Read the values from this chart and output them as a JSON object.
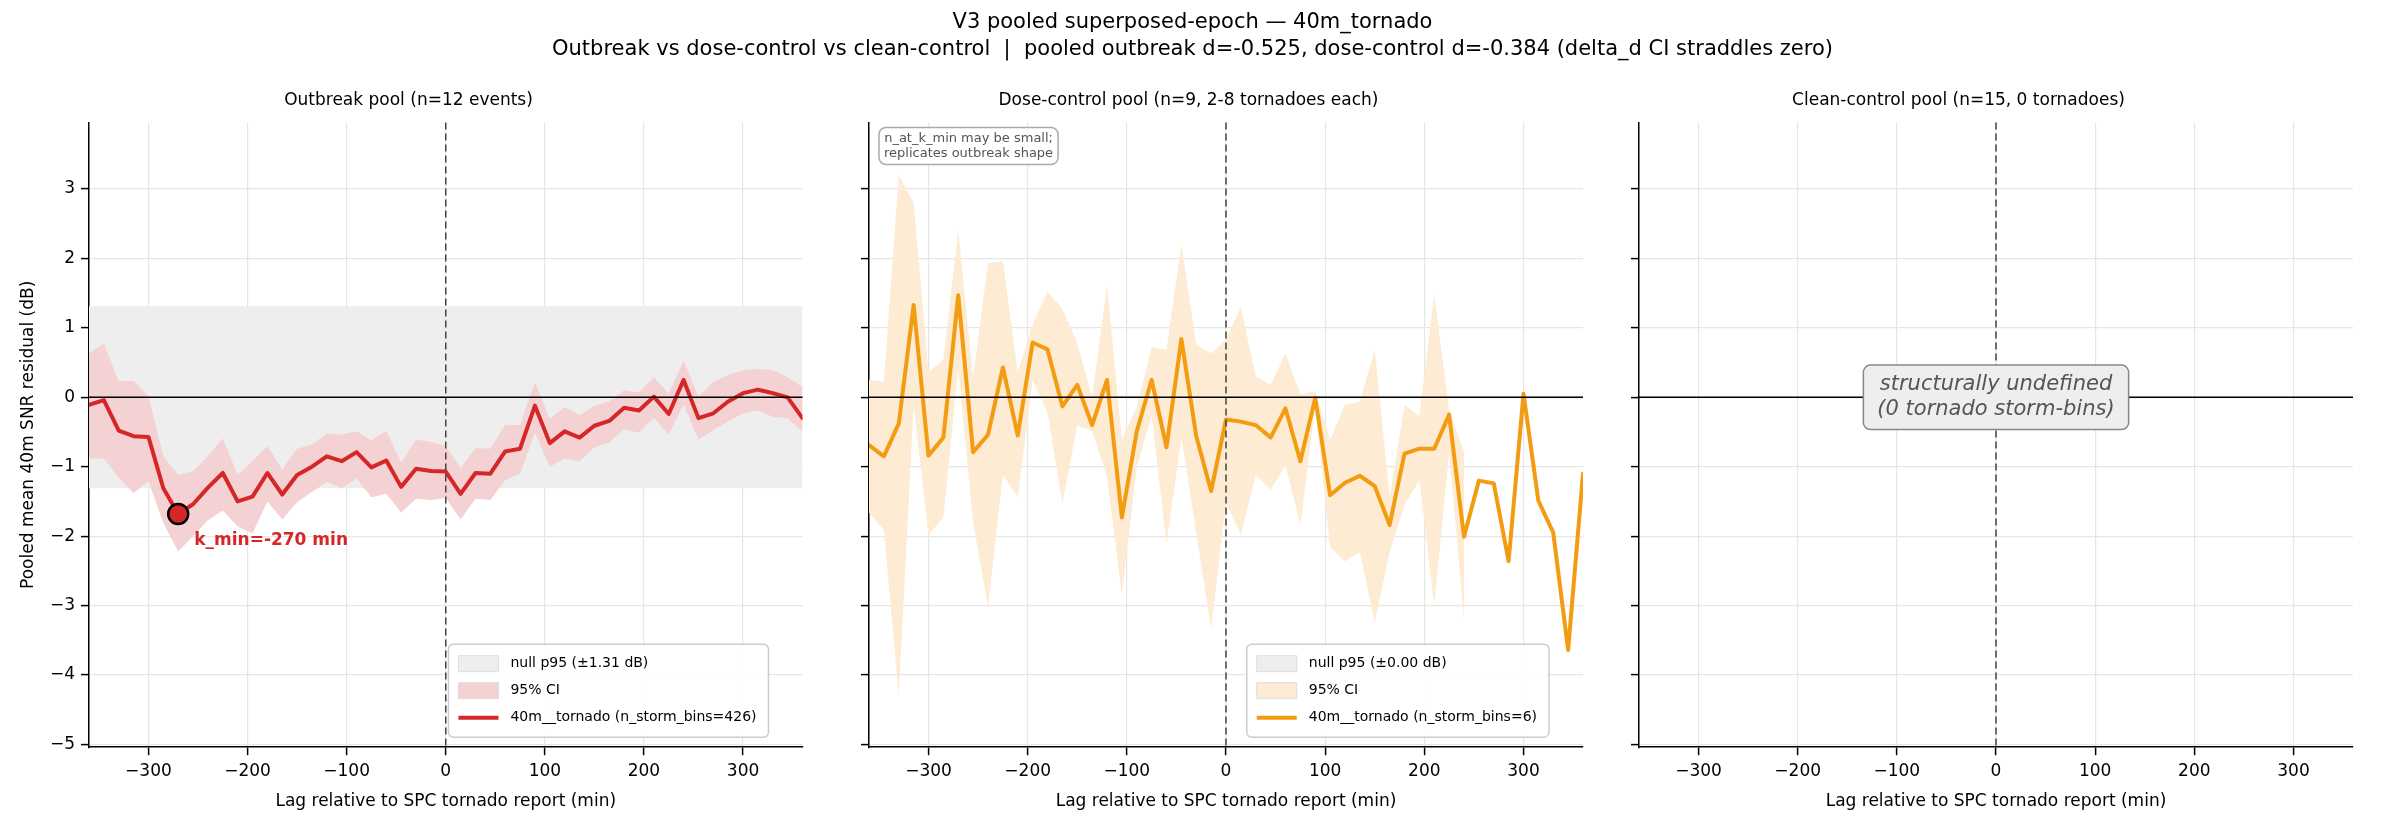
{
  "chart_data": [
    {
      "type": "other",
      "title": "V3 pooled superposed-epoch — 40m_tornado",
      "subtitle": "Outbreak vs dose-control vs clean-control  |  pooled outbreak d=-0.525, dose-control d=-0.384 (delta_d CI straddles zero)"
    },
    {
      "type": "line",
      "title": "Outbreak pool (n=12 events)",
      "xlabel": "Lag relative to SPC tornado report (min)",
      "ylabel": "Pooled mean 40m SNR residual (dB)",
      "x": [
        -360,
        -345,
        -330,
        -315,
        -300,
        -285,
        -270,
        -255,
        -240,
        -225,
        -210,
        -195,
        -180,
        -165,
        -150,
        -135,
        -120,
        -105,
        -90,
        -75,
        -60,
        -45,
        -30,
        -15,
        0,
        15,
        30,
        45,
        60,
        75,
        90,
        105,
        120,
        135,
        150,
        165,
        180,
        195,
        210,
        225,
        240,
        255,
        270,
        285,
        300,
        315,
        330,
        345,
        360
      ],
      "series": [
        {
          "name": "95% CI",
          "type": "area",
          "color": "#f4d1d2",
          "values": [
            null,
            null,
            null,
            null,
            null,
            null,
            null,
            null,
            null,
            null,
            null,
            null,
            null,
            null,
            null,
            null,
            null,
            null,
            null,
            null,
            null,
            null,
            null,
            null,
            null,
            null,
            null,
            null,
            null,
            null,
            null,
            null,
            null,
            null,
            null,
            null,
            null,
            null,
            null,
            null,
            null,
            null,
            null,
            null,
            null,
            null,
            null,
            null,
            null
          ],
          "lower": [
            -0.88,
            -0.88,
            -1.16,
            -1.38,
            -1.21,
            -1.81,
            -2.22,
            -2.0,
            -1.77,
            -1.63,
            -1.86,
            -1.96,
            -1.5,
            -1.76,
            -1.51,
            -1.36,
            -1.22,
            -1.31,
            -1.17,
            -1.44,
            -1.39,
            -1.66,
            -1.46,
            -1.48,
            -1.45,
            -1.76,
            -1.46,
            -1.48,
            -1.19,
            -1.1,
            -0.51,
            -1.0,
            -0.88,
            -0.92,
            -0.72,
            -0.65,
            -0.46,
            -0.51,
            -0.29,
            -0.54,
            -0.1,
            -0.61,
            -0.47,
            -0.35,
            -0.23,
            -0.19,
            -0.28,
            -0.3,
            -0.5
          ],
          "upper": [
            0.63,
            0.77,
            0.23,
            0.24,
            0.01,
            -0.85,
            -1.12,
            -1.06,
            -0.85,
            -0.59,
            -1.12,
            -0.92,
            -0.7,
            -1.04,
            -0.74,
            -0.68,
            -0.52,
            -0.54,
            -0.49,
            -0.62,
            -0.48,
            -0.94,
            -0.61,
            -0.64,
            -0.7,
            -1.02,
            -0.73,
            -0.74,
            -0.4,
            -0.4,
            0.22,
            -0.31,
            -0.14,
            -0.26,
            -0.12,
            -0.06,
            0.1,
            0.07,
            0.29,
            0.05,
            0.53,
            0.01,
            0.22,
            0.32,
            0.39,
            0.41,
            0.39,
            0.29,
            0.15
          ]
        },
        {
          "name": "40m__tornado (n_storm_bins=426)",
          "type": "line",
          "color": "#d62728",
          "marker": "none",
          "values": [
            -0.11,
            -0.04,
            -0.48,
            -0.56,
            -0.57,
            -1.31,
            -1.68,
            -1.54,
            -1.3,
            -1.09,
            -1.5,
            -1.43,
            -1.09,
            -1.4,
            -1.12,
            -1.0,
            -0.85,
            -0.92,
            -0.79,
            -1.01,
            -0.91,
            -1.29,
            -1.03,
            -1.06,
            -1.07,
            -1.39,
            -1.09,
            -1.1,
            -0.78,
            -0.74,
            -0.12,
            -0.66,
            -0.49,
            -0.58,
            -0.41,
            -0.34,
            -0.15,
            -0.19,
            0.01,
            -0.24,
            0.25,
            -0.3,
            -0.23,
            -0.06,
            0.06,
            0.11,
            0.06,
            0.0,
            -0.3
          ]
        },
        {
          "type": "scatter",
          "color": "#d62728",
          "marker": "circle",
          "x": [
            -270
          ],
          "values": [
            -1.68
          ]
        }
      ],
      "bands": [
        {
          "axis": "y",
          "from": -1.31,
          "to": 1.31,
          "label": "null p95 (±1.31 dB)",
          "color": "#eeeeee"
        }
      ],
      "ref_lines": [
        {
          "axis": "x",
          "value": 0,
          "color": "#444444",
          "line_style": "dashed"
        },
        {
          "axis": "y",
          "value": 0,
          "color": "#000000"
        }
      ],
      "annotations": [
        {
          "text": "k_min=-270 min",
          "x": -270,
          "y": -1.68
        }
      ],
      "xlim": [
        -360,
        360
      ],
      "xticks": [
        {
          "value": -300,
          "label": "−300"
        },
        {
          "value": -200,
          "label": "−200"
        },
        {
          "value": -100,
          "label": "−100"
        },
        0,
        100,
        200,
        300
      ],
      "ylim": [
        -5.04,
        3.96
      ],
      "yticks": [
        {
          "value": -5,
          "label": "−5"
        },
        {
          "value": -4,
          "label": "−4"
        },
        {
          "value": -3,
          "label": "−3"
        },
        {
          "value": -2,
          "label": "−2"
        },
        {
          "value": -1,
          "label": "−1"
        },
        0,
        1,
        2,
        3
      ],
      "grid": true,
      "legend": "bottom right"
    },
    {
      "type": "line",
      "title": "Dose-control pool (n=9, 2-8 tornadoes each)",
      "xlabel": "Lag relative to SPC tornado report (min)",
      "x": [
        -360,
        -345,
        -330,
        -315,
        -300,
        -285,
        -270,
        -255,
        -240,
        -225,
        -210,
        -195,
        -180,
        -165,
        -150,
        -135,
        -120,
        -105,
        -90,
        -75,
        -60,
        -45,
        -30,
        -15,
        0,
        15,
        30,
        45,
        60,
        75,
        90,
        105,
        120,
        135,
        150,
        165,
        180,
        195,
        210,
        225,
        240,
        255,
        270,
        285,
        300,
        315,
        330,
        345,
        360
      ],
      "series": [
        {
          "name": "95% CI",
          "type": "area",
          "color": "#fdebd3",
          "values": [
            null,
            null,
            null,
            null,
            null,
            null,
            null,
            null,
            null,
            null,
            null,
            null,
            null,
            null,
            null,
            null,
            null,
            null,
            null,
            null,
            null,
            null,
            null,
            null,
            null,
            null,
            null,
            null,
            null,
            null,
            null,
            null,
            null,
            null,
            null,
            null,
            null,
            null,
            null,
            null,
            null,
            null,
            null,
            null,
            null,
            null,
            null,
            null,
            null
          ],
          "lower": [
            -1.66,
            -1.91,
            -4.29,
            -0.11,
            -1.98,
            -1.73,
            0.43,
            -1.8,
            -3.02,
            -1.12,
            -1.43,
            0.25,
            -0.22,
            -1.53,
            -0.4,
            -0.49,
            -1.14,
            -2.84,
            -1.01,
            -0.25,
            -2.11,
            -0.58,
            -1.95,
            -3.33,
            -1.52,
            -1.98,
            -1.12,
            -1.33,
            -0.97,
            -1.84,
            -0.11,
            -2.16,
            -2.36,
            -2.23,
            -3.24,
            -2.23,
            -1.55,
            -1.19,
            -2.99,
            -0.79,
            -3.2,
            null,
            null,
            null,
            null,
            null,
            null,
            null,
            null
          ],
          "upper": [
            0.25,
            0.22,
            3.2,
            2.8,
            0.36,
            0.54,
            2.4,
            0.29,
            1.93,
            1.96,
            0.36,
            1.05,
            1.52,
            1.28,
            0.78,
            0.0,
            1.62,
            -0.61,
            -0.14,
            0.72,
            0.69,
            2.2,
            0.76,
            0.63,
            0.83,
            1.3,
            0.3,
            0.18,
            0.63,
            0.04,
            0.09,
            -0.61,
            -0.11,
            -0.06,
            0.69,
            -1.44,
            -0.11,
            -0.27,
            1.48,
            -0.18,
            -0.79,
            null,
            null,
            null,
            null,
            null,
            null,
            null,
            null
          ]
        },
        {
          "name": "40m__tornado (n_storm_bins=6)",
          "type": "line",
          "color": "#f39c12",
          "marker": "none",
          "values": [
            -0.69,
            -0.85,
            -0.38,
            1.33,
            -0.84,
            -0.58,
            1.47,
            -0.79,
            -0.54,
            0.43,
            -0.55,
            0.79,
            0.69,
            -0.13,
            0.18,
            -0.4,
            0.25,
            -1.73,
            -0.49,
            0.25,
            -0.72,
            0.84,
            -0.56,
            -1.35,
            -0.32,
            -0.35,
            -0.4,
            -0.58,
            -0.16,
            -0.92,
            -0.01,
            -1.41,
            -1.23,
            -1.13,
            -1.28,
            -1.84,
            -0.81,
            -0.74,
            -0.74,
            -0.25,
            -2.01,
            -1.2,
            -1.24,
            -2.36,
            0.05,
            -1.49,
            -1.95,
            -3.64,
            -1.1
          ]
        }
      ],
      "bands": [
        {
          "axis": "y",
          "from": 0,
          "to": 0,
          "label": "null p95 (±0.00 dB)",
          "color": "#eeeeee"
        }
      ],
      "ref_lines": [
        {
          "axis": "x",
          "value": 0,
          "color": "#444444",
          "line_style": "dashed"
        },
        {
          "axis": "y",
          "value": 0,
          "color": "#000000"
        }
      ],
      "annotations": [
        "n_at_k_min may be small;\nreplicates outbreak shape"
      ],
      "xlim": [
        -360,
        360
      ],
      "xticks": [
        {
          "value": -300,
          "label": "−300"
        },
        {
          "value": -200,
          "label": "−200"
        },
        {
          "value": -100,
          "label": "−100"
        },
        0,
        100,
        200,
        300
      ],
      "ylim": [
        -5.04,
        3.96
      ],
      "yticks": [
        -5,
        -4,
        -3,
        -2,
        -1,
        0,
        1,
        2,
        3
      ],
      "tick_labels": "x",
      "grid": true,
      "legend": "bottom right"
    },
    {
      "type": "line",
      "title": "Clean-control pool (n=15, 0 tornadoes)",
      "xlabel": "Lag relative to SPC tornado report (min)",
      "ref_lines": [
        {
          "axis": "x",
          "value": 0,
          "color": "#444444",
          "line_style": "dashed"
        },
        {
          "axis": "y",
          "value": 0,
          "color": "#000000"
        }
      ],
      "annotations": [
        "structurally undefined\n(0 tornado storm-bins)"
      ],
      "xlim": [
        -360,
        360
      ],
      "xticks": [
        {
          "value": -300,
          "label": "−300"
        },
        {
          "value": -200,
          "label": "−200"
        },
        {
          "value": -100,
          "label": "−100"
        },
        0,
        100,
        200,
        300
      ],
      "ylim": [
        -5.04,
        3.96
      ],
      "yticks": [
        -5,
        -4,
        -3,
        -2,
        -1,
        0,
        1,
        2,
        3
      ],
      "tick_labels": "x",
      "grid": true
    }
  ]
}
